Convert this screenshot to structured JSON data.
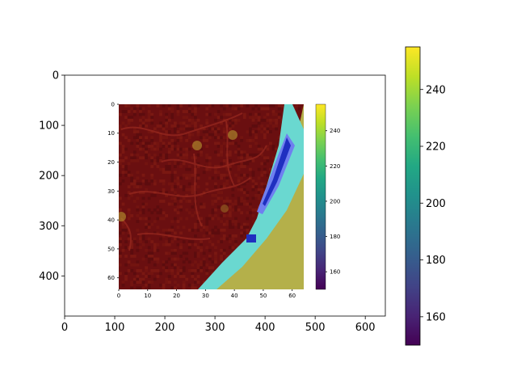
{
  "chart_data": [
    {
      "type": "heatmap",
      "title": "",
      "xlabel": "",
      "ylabel": "",
      "xlim": [
        0,
        640
      ],
      "ylim": [
        480,
        0
      ],
      "x_ticks": [
        "0",
        "100",
        "200",
        "300",
        "400",
        "500",
        "600"
      ],
      "y_ticks": [
        "0",
        "100",
        "200",
        "300",
        "400"
      ],
      "content": "screenshot of an inner figure",
      "colorbar": {
        "colormap": "viridis",
        "range": [
          150,
          255
        ],
        "ticks": [
          "160",
          "180",
          "200",
          "220",
          "240"
        ]
      }
    },
    {
      "type": "heatmap",
      "title": "",
      "xlabel": "",
      "ylabel": "",
      "xlim": [
        0,
        64
      ],
      "ylim": [
        64,
        0
      ],
      "x_ticks": [
        "0",
        "10",
        "20",
        "30",
        "40",
        "50",
        "60"
      ],
      "y_ticks": [
        "0",
        "10",
        "20",
        "30",
        "40",
        "50",
        "60"
      ],
      "content": "dark red textured region with a cyan/light-blue diagonal band and olive-yellow region at lower right",
      "colorbar": {
        "colormap": "viridis",
        "range": [
          150,
          255
        ],
        "ticks": [
          "160",
          "180",
          "200",
          "220",
          "240"
        ]
      }
    }
  ]
}
